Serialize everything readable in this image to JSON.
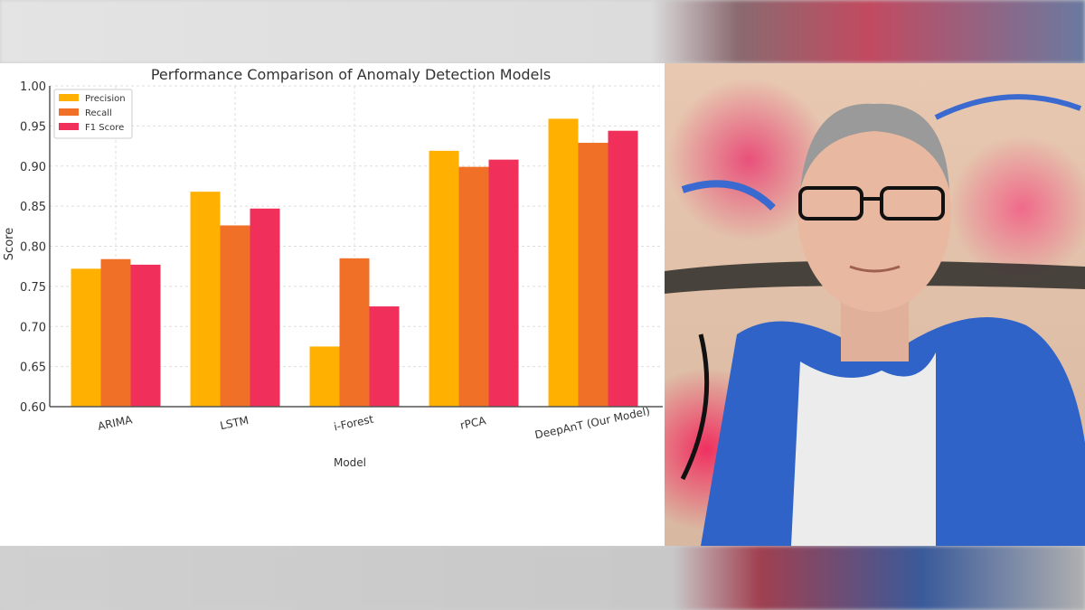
{
  "chart_data": {
    "type": "bar",
    "title": "Performance Comparison of Anomaly Detection Models",
    "xlabel": "Model",
    "ylabel": "Score",
    "ylim": [
      0.6,
      1.0
    ],
    "yticks": [
      "0.60",
      "0.65",
      "0.70",
      "0.75",
      "0.80",
      "0.85",
      "0.90",
      "0.95",
      "1.00"
    ],
    "grid": true,
    "legend_placement": "top-left",
    "categories": [
      "ARIMA",
      "LSTM",
      "i-Forest",
      "rPCA",
      "DeepAnT (Our Model)"
    ],
    "series": [
      {
        "name": "Precision",
        "color": "#FFB000",
        "values": [
          0.772,
          0.868,
          0.675,
          0.919,
          0.959
        ]
      },
      {
        "name": "Recall",
        "color": "#F07028",
        "values": [
          0.784,
          0.826,
          0.785,
          0.899,
          0.929
        ]
      },
      {
        "name": "F1 Score",
        "color": "#F0305A",
        "values": [
          0.777,
          0.847,
          0.725,
          0.908,
          0.944
        ]
      }
    ]
  },
  "photo": {
    "subject": "man in blue blazer and glasses in front of graffiti wall"
  }
}
